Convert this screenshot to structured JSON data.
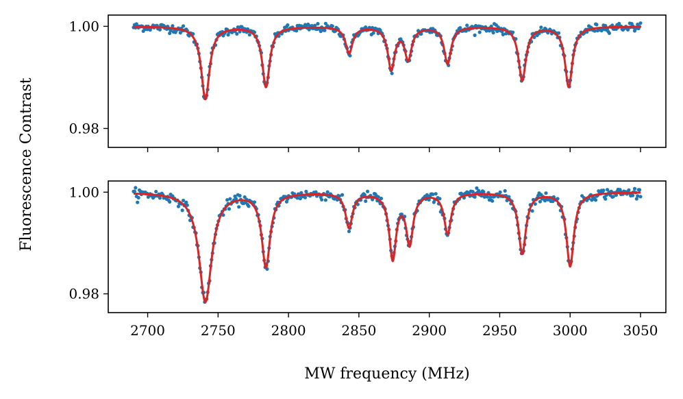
{
  "chart_data": [
    {
      "type": "scatter",
      "panel": "top",
      "xlabel": "",
      "ylabel": "Fluorescence Contrast",
      "xlim": [
        2672,
        3068
      ],
      "ylim": [
        0.9763,
        1.0022
      ],
      "xticks": [
        2700,
        2750,
        2800,
        2850,
        2900,
        2950,
        3000,
        3050
      ],
      "xtick_labels_visible": false,
      "yticks": [
        0.98,
        1.0
      ],
      "ytick_labels": [
        "0.98",
        "1.00"
      ],
      "x_range": [
        2690,
        3050
      ],
      "series": [
        {
          "style": "scatter",
          "color": "#1f77b4",
          "noise_amplitude": 0.0004,
          "dips": [
            {
              "center": 2741,
              "depth": 0.0142,
              "hwhm": 3.6
            },
            {
              "center": 2784,
              "depth": 0.0118,
              "hwhm": 3.2
            },
            {
              "center": 2843,
              "depth": 0.0052,
              "hwhm": 3.0
            },
            {
              "center": 2873,
              "depth": 0.0082,
              "hwhm": 3.0
            },
            {
              "center": 2885,
              "depth": 0.0062,
              "hwhm": 3.0
            },
            {
              "center": 2913,
              "depth": 0.0072,
              "hwhm": 3.0
            },
            {
              "center": 2966,
              "depth": 0.0105,
              "hwhm": 3.2
            },
            {
              "center": 2999,
              "depth": 0.0118,
              "hwhm": 3.2
            }
          ]
        },
        {
          "style": "line",
          "color": "#d62728",
          "dips": [
            {
              "center": 2741,
              "depth": 0.0142,
              "hwhm": 3.6
            },
            {
              "center": 2784,
              "depth": 0.0118,
              "hwhm": 3.2
            },
            {
              "center": 2843,
              "depth": 0.0052,
              "hwhm": 3.0
            },
            {
              "center": 2873,
              "depth": 0.0082,
              "hwhm": 3.0
            },
            {
              "center": 2885,
              "depth": 0.0062,
              "hwhm": 3.0
            },
            {
              "center": 2913,
              "depth": 0.0072,
              "hwhm": 3.0
            },
            {
              "center": 2966,
              "depth": 0.0105,
              "hwhm": 3.2
            },
            {
              "center": 2999,
              "depth": 0.0118,
              "hwhm": 3.2
            }
          ]
        }
      ]
    },
    {
      "type": "scatter",
      "panel": "bottom",
      "xlabel": "MW frequency (MHz)",
      "ylabel": "Fluorescence Contrast",
      "xlim": [
        2672,
        3068
      ],
      "ylim": [
        0.9763,
        1.0022
      ],
      "xticks": [
        2700,
        2750,
        2800,
        2850,
        2900,
        2950,
        3000,
        3050
      ],
      "xtick_labels": [
        "2700",
        "2750",
        "2800",
        "2850",
        "2900",
        "2950",
        "3000",
        "3050"
      ],
      "yticks": [
        0.98,
        1.0
      ],
      "ytick_labels": [
        "0.98",
        "1.00"
      ],
      "x_range": [
        2690,
        3050
      ],
      "series": [
        {
          "style": "scatter",
          "color": "#1f77b4",
          "noise_amplitude": 0.0005,
          "dips": [
            {
              "center": 2741,
              "depth": 0.0215,
              "hwhm": 5.5
            },
            {
              "center": 2784,
              "depth": 0.0145,
              "hwhm": 3.6
            },
            {
              "center": 2843,
              "depth": 0.0068,
              "hwhm": 3.0
            },
            {
              "center": 2874,
              "depth": 0.0128,
              "hwhm": 3.0
            },
            {
              "center": 2886,
              "depth": 0.0098,
              "hwhm": 3.0
            },
            {
              "center": 2913,
              "depth": 0.008,
              "hwhm": 3.0
            },
            {
              "center": 2966,
              "depth": 0.012,
              "hwhm": 3.2
            },
            {
              "center": 3000,
              "depth": 0.0145,
              "hwhm": 3.2
            }
          ]
        },
        {
          "style": "line",
          "color": "#d62728",
          "dips": [
            {
              "center": 2741,
              "depth": 0.0215,
              "hwhm": 5.5
            },
            {
              "center": 2784,
              "depth": 0.0145,
              "hwhm": 3.6
            },
            {
              "center": 2843,
              "depth": 0.0068,
              "hwhm": 3.0
            },
            {
              "center": 2874,
              "depth": 0.0128,
              "hwhm": 3.0
            },
            {
              "center": 2886,
              "depth": 0.0098,
              "hwhm": 3.0
            },
            {
              "center": 2913,
              "depth": 0.008,
              "hwhm": 3.0
            },
            {
              "center": 2966,
              "depth": 0.012,
              "hwhm": 3.2
            },
            {
              "center": 3000,
              "depth": 0.0145,
              "hwhm": 3.2
            }
          ]
        }
      ]
    }
  ]
}
